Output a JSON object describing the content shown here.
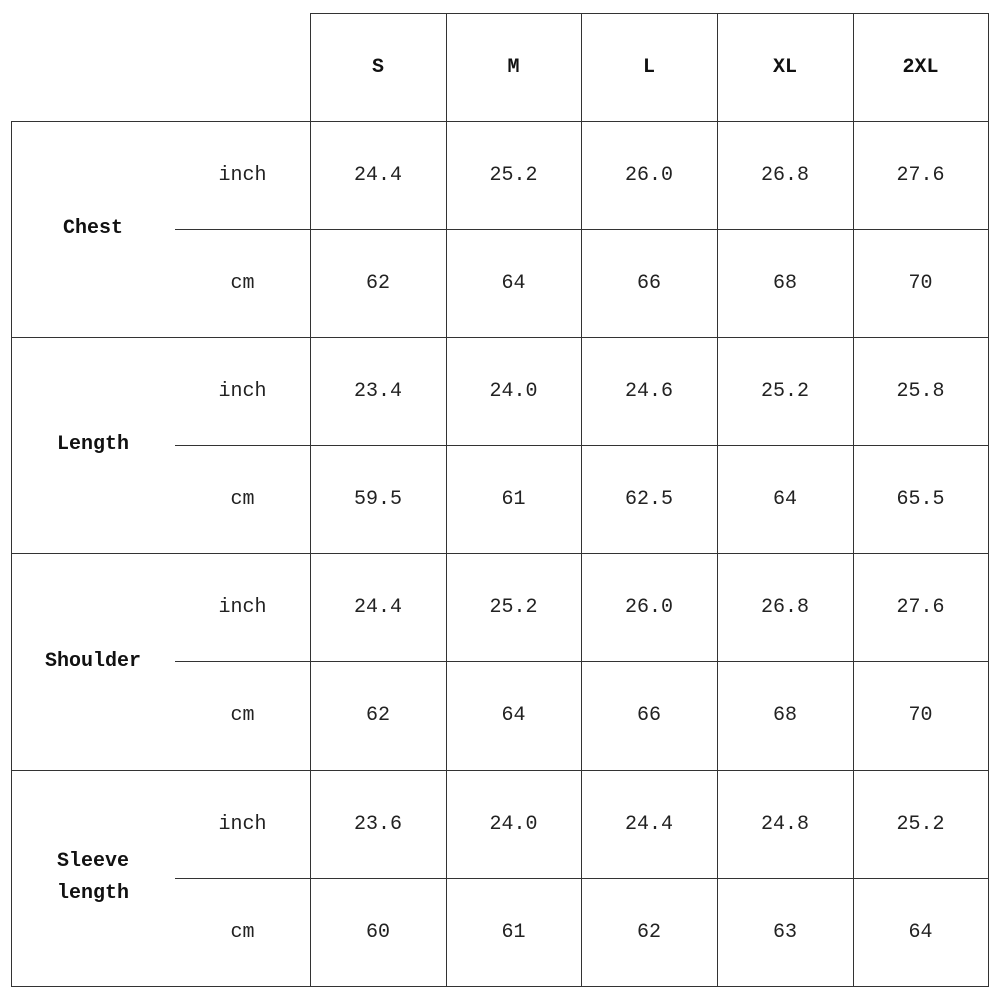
{
  "sizes": [
    "S",
    "M",
    "L",
    "XL",
    "2XL"
  ],
  "measurements": [
    {
      "label": "Chest",
      "rows": [
        {
          "unit": "inch",
          "values": [
            "24.4",
            "25.2",
            "26.0",
            "26.8",
            "27.6"
          ]
        },
        {
          "unit": "cm",
          "values": [
            "62",
            "64",
            "66",
            "68",
            "70"
          ]
        }
      ]
    },
    {
      "label": "Length",
      "rows": [
        {
          "unit": "inch",
          "values": [
            "23.4",
            "24.0",
            "24.6",
            "25.2",
            "25.8"
          ]
        },
        {
          "unit": "cm",
          "values": [
            "59.5",
            "61",
            "62.5",
            "64",
            "65.5"
          ]
        }
      ]
    },
    {
      "label": "Shoulder",
      "rows": [
        {
          "unit": "inch",
          "values": [
            "24.4",
            "25.2",
            "26.0",
            "26.8",
            "27.6"
          ]
        },
        {
          "unit": "cm",
          "values": [
            "62",
            "64",
            "66",
            "68",
            "70"
          ]
        }
      ]
    },
    {
      "label": "Sleeve\nlength",
      "rows": [
        {
          "unit": "inch",
          "values": [
            "23.6",
            "24.0",
            "24.4",
            "24.8",
            "25.2"
          ]
        },
        {
          "unit": "cm",
          "values": [
            "60",
            "61",
            "62",
            "63",
            "64"
          ]
        }
      ]
    }
  ]
}
